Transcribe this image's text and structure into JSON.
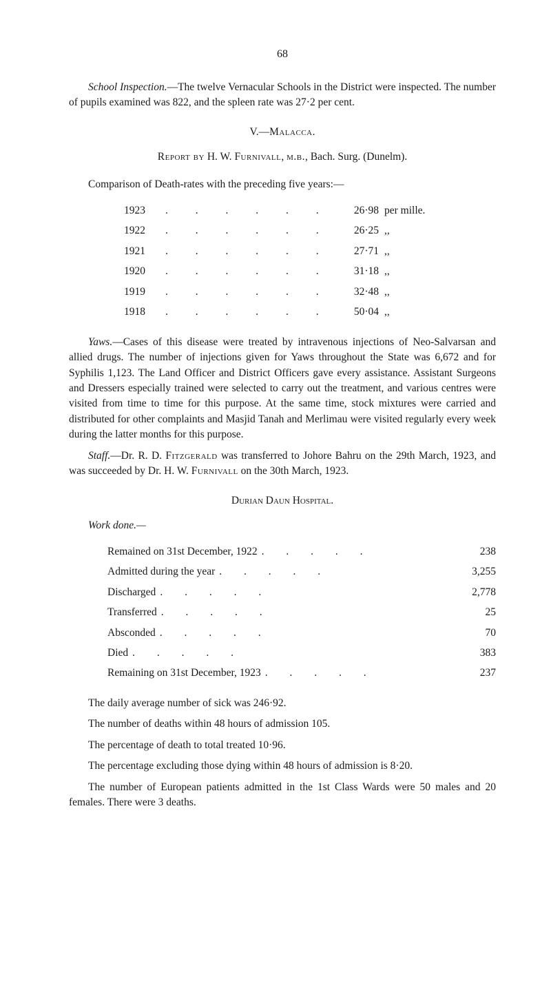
{
  "pageNumber": "68",
  "schoolInspection": "School Inspection.—The twelve Vernacular Schools in the District were inspected. The number of pupils examined was 822, and the spleen rate was 27·2 per cent.",
  "sectionV": "V.—Malacca.",
  "reportBy": {
    "prefix": "Report by",
    "name": " H. W. Furnivall, m.b., ",
    "suffix": "Bach. Surg. (Dunelm)."
  },
  "comparisonIntro": "Comparison of Death-rates with the preceding five years:—",
  "rates": {
    "unitFull": "per mille.",
    "ditto": ",,",
    "rows": [
      {
        "year": "1923",
        "value": "26·98"
      },
      {
        "year": "1922",
        "value": "26·25"
      },
      {
        "year": "1921",
        "value": "27·71"
      },
      {
        "year": "1920",
        "value": "31·18"
      },
      {
        "year": "1919",
        "value": "32·48"
      },
      {
        "year": "1918",
        "value": "50·04"
      }
    ]
  },
  "yaws": "Yaws.—Cases of this disease were treated by intravenous injections of Neo-Salvarsan and allied drugs. The number of injections given for Yaws throughout the State was 6,672 and for Syphilis 1,123. The Land Officer and District Officers gave every assistance. Assistant Surgeons and Dressers especially trained were selected to carry out the treatment, and various centres were visited from time to time for this purpose. At the same time, stock mixtures were carried and distributed for other complaints and Masjid Tanah and Merlimau were visited regularly every week during the latter months for this purpose.",
  "staff": "Staff.—Dr. R. D. Fitzgerald was transferred to Johore Bahru on the 29th March, 1923, and was succeeded by Dr. H. W. Furnivall on the 30th March, 1923.",
  "hospitalHeading": "Durian Daun Hospital.",
  "workDoneLabel": "Work done.—",
  "work": {
    "rows": [
      {
        "label": "Remained on 31st December, 1922",
        "value": "238"
      },
      {
        "label": "Admitted during the year",
        "value": "3,255"
      },
      {
        "label": "Discharged",
        "value": "2,778"
      },
      {
        "label": "Transferred",
        "value": "25"
      },
      {
        "label": "Absconded",
        "value": "70"
      },
      {
        "label": "Died",
        "value": "383"
      },
      {
        "label": "Remaining on 31st December, 1923",
        "value": "237"
      }
    ]
  },
  "dailyAvg": "The daily average number of sick was 246·92.",
  "deaths48": "The number of deaths within 48 hours of admission 105.",
  "pctTotal": "The percentage of death to total treated 10·96.",
  "pctExcl": "The percentage excluding those dying within 48 hours of admission is 8·20.",
  "european": "The number of European patients admitted in the 1st Class Wards were 50 males and 20 females. There were 3 deaths.",
  "dotsLong": ". . . . . .",
  "dotsShort": ". . . . ."
}
